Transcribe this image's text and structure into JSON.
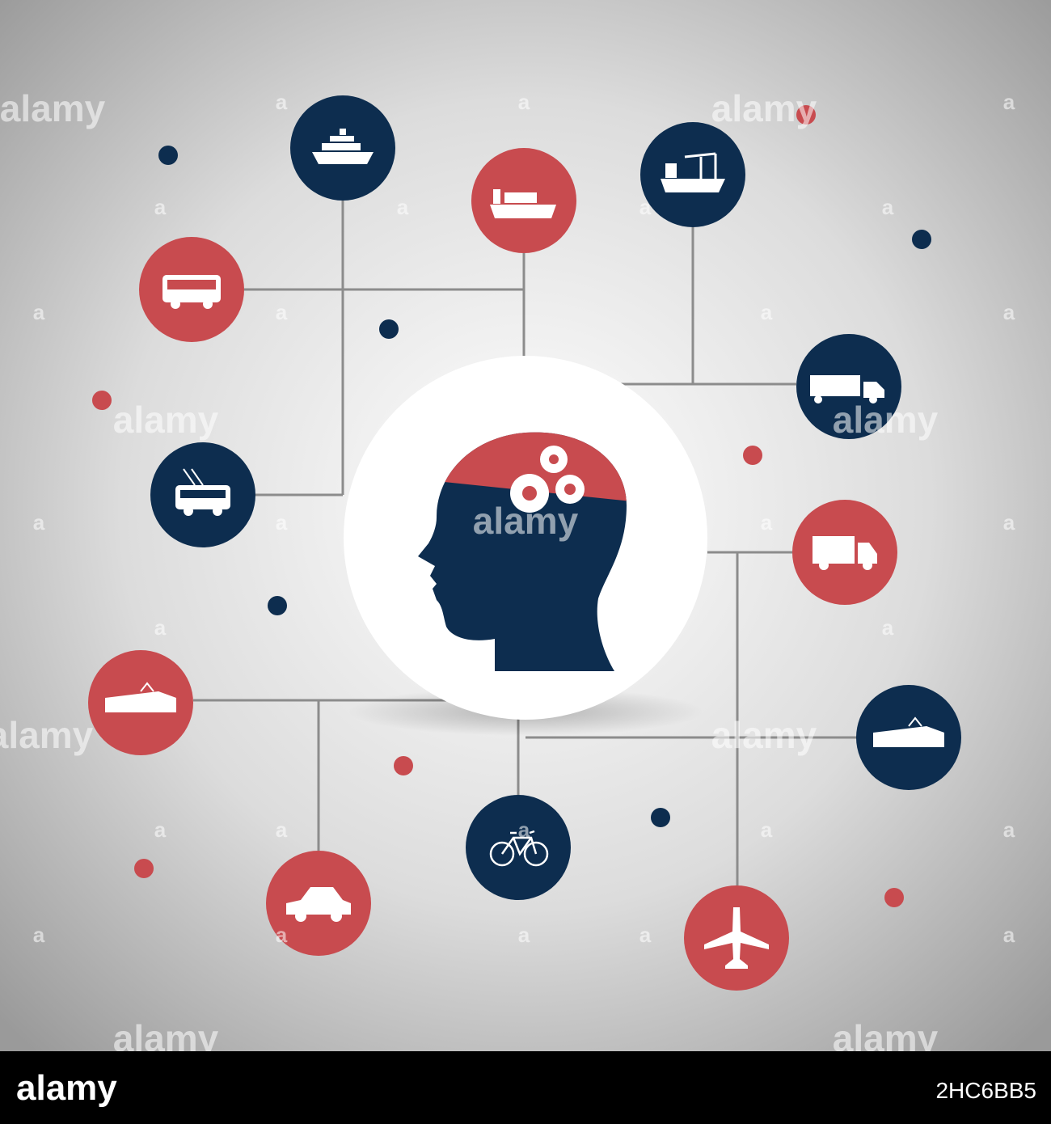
{
  "watermark": "alamy",
  "watermark_small": "a",
  "footer": {
    "logo": "alamy",
    "image_id": "2HC6BB5"
  }
}
